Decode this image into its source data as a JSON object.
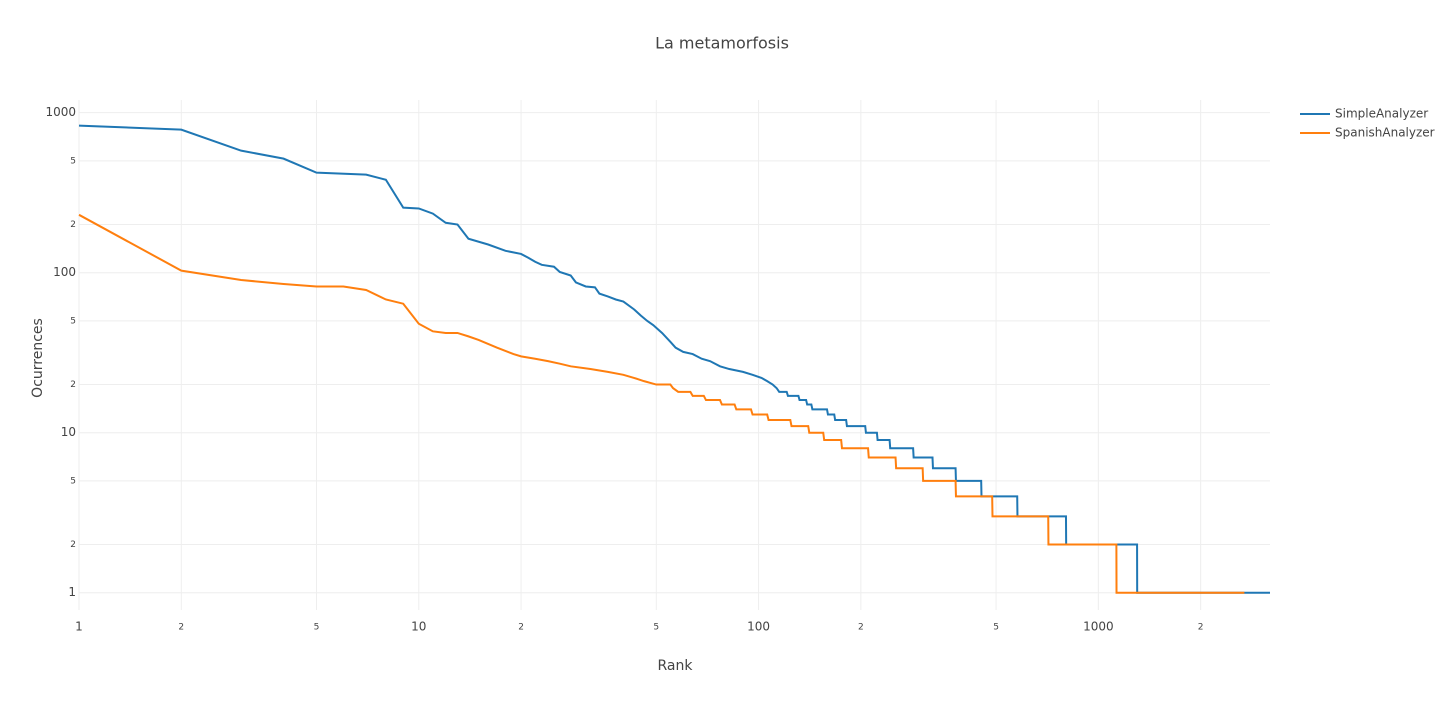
{
  "chart_data": {
    "type": "line",
    "title": "La metamorfosis",
    "x_label": "Rank",
    "y_label": "Ocurrences",
    "log_x": true,
    "log_y": true,
    "grid": true,
    "legend": "top-right",
    "xlim": [
      1,
      3200
    ],
    "ylim": [
      0.78,
      1200
    ],
    "xticks": [
      1,
      2,
      5,
      10,
      {
        "value": 20,
        "label": "2"
      },
      {
        "value": 50,
        "label": "5"
      },
      100,
      {
        "value": 200,
        "label": "2"
      },
      {
        "value": 500,
        "label": "5"
      },
      1000,
      {
        "value": 2000,
        "label": "2"
      }
    ],
    "yticks": [
      1,
      2,
      5,
      10,
      {
        "value": 20,
        "label": "2"
      },
      {
        "value": 50,
        "label": "5"
      },
      100,
      {
        "value": 200,
        "label": "2"
      },
      {
        "value": 500,
        "label": "5"
      },
      1000
    ],
    "series": [
      {
        "name": "SimpleAnalyzer",
        "color": "#1f77b4",
        "x": [
          1,
          2,
          3,
          4,
          5,
          7,
          8,
          9,
          10,
          11,
          12,
          13,
          14,
          16,
          18,
          20,
          21,
          22,
          23,
          25,
          26,
          28,
          29,
          31,
          33,
          34,
          36,
          38,
          40,
          43,
          45,
          47,
          49,
          52,
          55,
          57,
          60,
          64,
          68,
          72,
          77,
          82,
          90,
          96,
          102,
          106,
          110,
          113,
          115,
          121,
          122,
          131,
          132,
          138,
          139,
          143,
          144,
          159,
          160,
          167,
          168,
          181,
          182,
          206,
          207,
          223,
          224,
          243,
          244,
          285,
          286,
          325,
          326,
          380,
          381,
          452,
          453,
          577,
          578,
          803,
          804,
          1300,
          1301,
          3200
        ],
        "values": [
          830,
          783,
          579,
          516,
          422,
          410,
          381,
          255,
          252,
          234,
          205,
          200,
          163,
          150,
          137,
          131,
          124,
          117,
          112,
          109,
          101,
          96,
          87,
          82,
          81,
          74,
          71,
          68,
          66,
          59,
          54,
          50,
          47,
          42,
          37,
          34,
          32,
          31,
          29,
          28,
          26,
          25,
          24,
          23,
          22,
          21,
          20,
          19,
          18,
          18,
          17,
          17,
          16,
          16,
          15,
          15,
          14,
          14,
          13,
          13,
          12,
          12,
          11,
          11,
          10,
          10,
          9,
          9,
          8,
          8,
          7,
          7,
          6,
          6,
          5,
          5,
          4,
          4,
          3,
          3,
          2,
          2,
          1,
          1
        ]
      },
      {
        "name": "SpanishAnalyzer",
        "color": "#ff7f0e",
        "x": [
          1,
          2,
          3,
          4,
          5,
          6,
          7,
          8,
          9,
          10,
          11,
          12,
          13,
          14,
          15,
          17,
          19,
          20,
          22,
          24,
          26,
          28,
          32,
          36,
          40,
          43,
          46,
          50,
          55,
          56,
          58,
          63,
          64,
          69,
          70,
          77,
          78,
          85,
          86,
          95,
          96,
          106,
          107,
          124,
          125,
          140,
          141,
          155,
          156,
          175,
          176,
          210,
          211,
          253,
          254,
          304,
          305,
          380,
          381,
          487,
          488,
          712,
          713,
          1130,
          1131,
          2690
        ],
        "values": [
          230,
          103,
          90,
          85,
          82,
          82,
          78,
          68,
          64,
          48,
          43,
          42,
          42,
          40,
          38,
          34,
          31,
          30,
          29,
          28,
          27,
          26,
          25,
          24,
          23,
          22,
          21,
          20,
          20,
          19,
          18,
          18,
          17,
          17,
          16,
          16,
          15,
          15,
          14,
          14,
          13,
          13,
          12,
          12,
          11,
          11,
          10,
          10,
          9,
          9,
          8,
          8,
          7,
          7,
          6,
          6,
          5,
          5,
          4,
          4,
          3,
          3,
          2,
          2,
          1,
          1
        ]
      }
    ]
  }
}
